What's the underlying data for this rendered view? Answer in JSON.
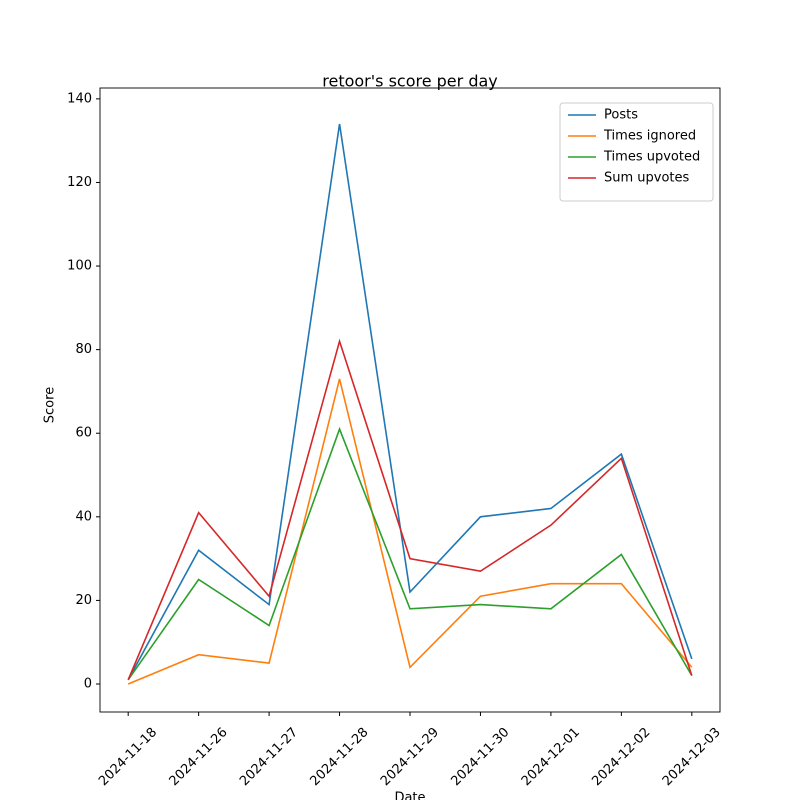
{
  "chart_data": {
    "type": "line",
    "title": "retoor's score per day",
    "x_label": "Date",
    "y_label": "Score",
    "categories": [
      "2024-11-18",
      "2024-11-26",
      "2024-11-27",
      "2024-11-28",
      "2024-11-29",
      "2024-11-30",
      "2024-12-01",
      "2024-12-02",
      "2024-12-03"
    ],
    "series": [
      {
        "name": "Posts",
        "color": "#1f77b4",
        "values": [
          1,
          32,
          19,
          134,
          22,
          40,
          42,
          55,
          6
        ]
      },
      {
        "name": "Times ignored",
        "color": "#ff7f0e",
        "values": [
          0,
          7,
          5,
          73,
          4,
          21,
          24,
          24,
          4
        ]
      },
      {
        "name": "Times upvoted",
        "color": "#2ca02c",
        "values": [
          1,
          25,
          14,
          61,
          18,
          19,
          18,
          31,
          2
        ]
      },
      {
        "name": "Sum upvotes",
        "color": "#d62728",
        "values": [
          1,
          41,
          21,
          82,
          30,
          27,
          38,
          54,
          2
        ]
      }
    ],
    "ylim": [
      -6.7,
      142.6
    ],
    "yticks": [
      0,
      20,
      40,
      60,
      80,
      100,
      120,
      140
    ],
    "grid": false,
    "legend": "upper right"
  }
}
